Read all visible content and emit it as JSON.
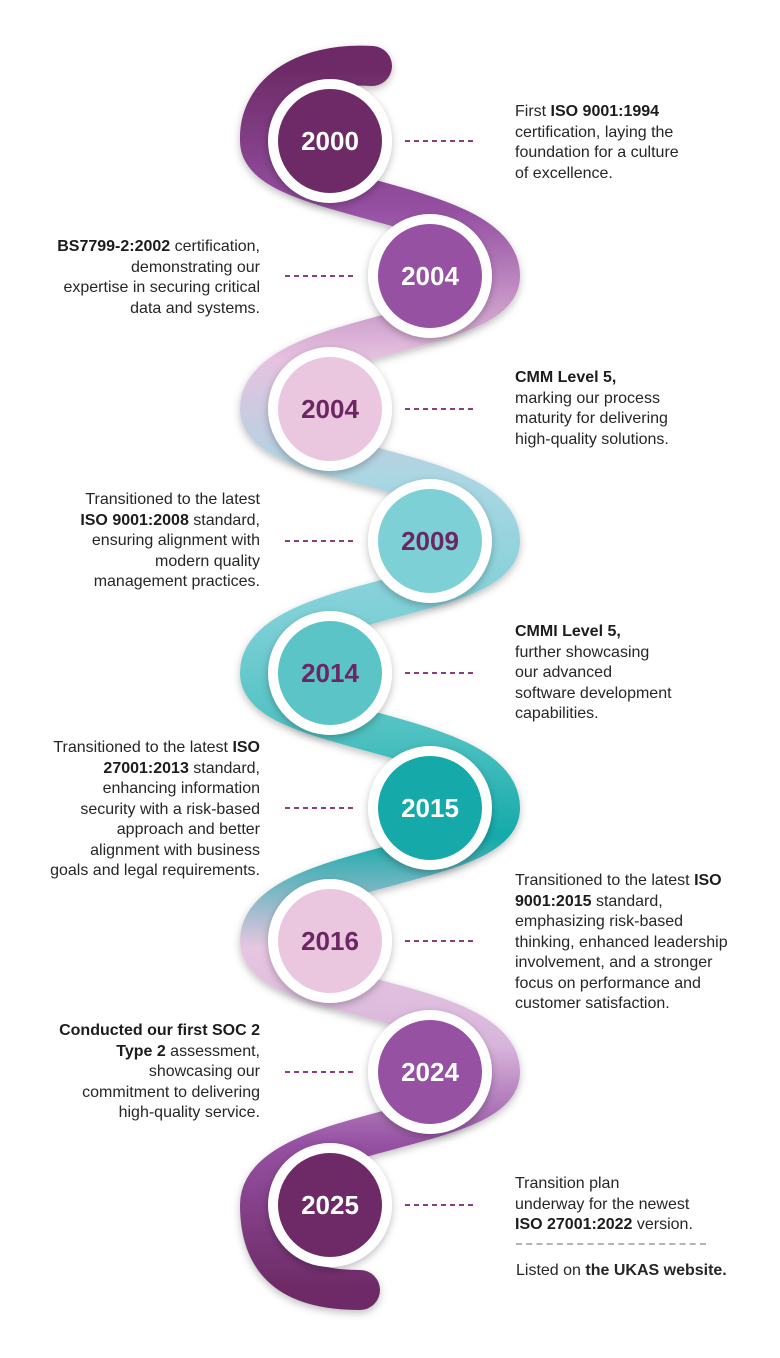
{
  "milestones": [
    {
      "year": "2000",
      "side": "right",
      "color": "#6d2a66",
      "text": [
        {
          "t": "First ",
          "b": false
        },
        {
          "t": "ISO 9001:1994",
          "b": true
        },
        {
          "br": true
        },
        {
          "t": "certification, laying the",
          "b": false
        },
        {
          "br": true
        },
        {
          "t": "foundation for a culture",
          "b": false
        },
        {
          "br": true
        },
        {
          "t": "of excellence.",
          "b": false
        }
      ]
    },
    {
      "year": "2004",
      "side": "left",
      "color": "#9651a3",
      "text": [
        {
          "t": "BS7799-2:2002",
          "b": true
        },
        {
          "t": " certification,",
          "b": false
        },
        {
          "br": true
        },
        {
          "t": "demonstrating our",
          "b": false
        },
        {
          "br": true
        },
        {
          "t": "expertise in securing critical",
          "b": false
        },
        {
          "br": true
        },
        {
          "t": "data and systems.",
          "b": false
        }
      ]
    },
    {
      "year": "2004",
      "side": "right",
      "color": "#ebc6df",
      "text": [
        {
          "t": "CMM Level 5,",
          "b": true
        },
        {
          "br": true
        },
        {
          "t": "marking our process",
          "b": false
        },
        {
          "br": true
        },
        {
          "t": "maturity for delivering",
          "b": false
        },
        {
          "br": true
        },
        {
          "t": "high-quality solutions.",
          "b": false
        }
      ]
    },
    {
      "year": "2009",
      "side": "left",
      "color": "#7ed0d7",
      "text": [
        {
          "t": "Transitioned to the latest",
          "b": false
        },
        {
          "br": true
        },
        {
          "t": "ISO 9001:2008",
          "b": true
        },
        {
          "t": " standard,",
          "b": false
        },
        {
          "br": true
        },
        {
          "t": "ensuring alignment with",
          "b": false
        },
        {
          "br": true
        },
        {
          "t": "modern quality",
          "b": false
        },
        {
          "br": true
        },
        {
          "t": "management practices.",
          "b": false
        }
      ]
    },
    {
      "year": "2014",
      "side": "right",
      "color": "#5ac4c6",
      "text": [
        {
          "t": "CMMI Level 5,",
          "b": true
        },
        {
          "br": true
        },
        {
          "t": "further showcasing",
          "b": false
        },
        {
          "br": true
        },
        {
          "t": "our advanced",
          "b": false
        },
        {
          "br": true
        },
        {
          "t": "software development",
          "b": false
        },
        {
          "br": true
        },
        {
          "t": "capabilities.",
          "b": false
        }
      ]
    },
    {
      "year": "2015",
      "side": "left",
      "color": "#15aaa9",
      "text": [
        {
          "t": "Transitioned to the latest ",
          "b": false
        },
        {
          "t": "ISO",
          "b": true
        },
        {
          "br": true
        },
        {
          "t": "27001:2013",
          "b": true
        },
        {
          "t": " standard,",
          "b": false
        },
        {
          "br": true
        },
        {
          "t": "enhancing information",
          "b": false
        },
        {
          "br": true
        },
        {
          "t": "security with a risk-based",
          "b": false
        },
        {
          "br": true
        },
        {
          "t": "approach and better",
          "b": false
        },
        {
          "br": true
        },
        {
          "t": "alignment with business",
          "b": false
        },
        {
          "br": true
        },
        {
          "t": "goals and legal requirements.",
          "b": false
        }
      ]
    },
    {
      "year": "2016",
      "side": "right",
      "color": "#ebc6df",
      "text": [
        {
          "t": "Transitioned to the latest ",
          "b": false
        },
        {
          "t": "ISO",
          "b": true
        },
        {
          "br": true
        },
        {
          "t": "9001:2015",
          "b": true
        },
        {
          "t": " standard,",
          "b": false
        },
        {
          "br": true
        },
        {
          "t": "emphasizing risk-based",
          "b": false
        },
        {
          "br": true
        },
        {
          "t": "thinking, enhanced leadership",
          "b": false
        },
        {
          "br": true
        },
        {
          "t": "involvement, and a stronger",
          "b": false
        },
        {
          "br": true
        },
        {
          "t": "focus on performance and",
          "b": false
        },
        {
          "br": true
        },
        {
          "t": "customer satisfaction.",
          "b": false
        }
      ]
    },
    {
      "year": "2024",
      "side": "left",
      "color": "#9651a3",
      "text": [
        {
          "t": "Conducted our first SOC 2",
          "b": true
        },
        {
          "br": true
        },
        {
          "t": "Type 2",
          "b": true
        },
        {
          "t": " assessment,",
          "b": false
        },
        {
          "br": true
        },
        {
          "t": "showcasing our",
          "b": false
        },
        {
          "br": true
        },
        {
          "t": "commitment to delivering",
          "b": false
        },
        {
          "br": true
        },
        {
          "t": "high-quality service.",
          "b": false
        }
      ]
    },
    {
      "year": "2025",
      "side": "right",
      "color": "#6d2a66",
      "text": [
        {
          "t": "Transition plan",
          "b": false
        },
        {
          "br": true
        },
        {
          "t": "underway for the newest",
          "b": false
        },
        {
          "br": true
        },
        {
          "t": "ISO 27001:2022",
          "b": true
        },
        {
          "t": " version.",
          "b": false
        }
      ]
    }
  ],
  "footnote": {
    "prefix": "Listed on ",
    "link": "the UKAS website."
  },
  "colors": {
    "year_text_light": "#ffffff",
    "year_text_dark": "#6b2763",
    "connector": "#8a3d83",
    "body_text": "#262626"
  }
}
